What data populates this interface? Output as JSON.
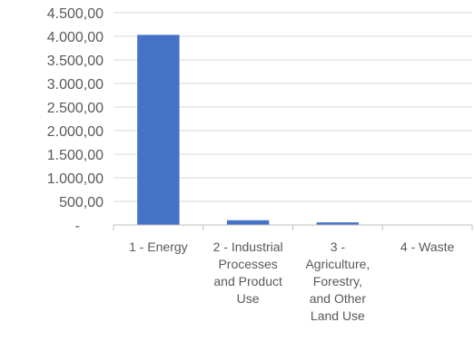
{
  "chart_data": {
    "type": "bar",
    "title": "",
    "xlabel": "",
    "ylabel": "",
    "categories": [
      "1 - Energy",
      "2 - Industrial Processes and Product Use",
      "3 - Agriculture, Forestry, and Other Land Use",
      "4 - Waste"
    ],
    "category_label_lines": [
      [
        "1 - Energy"
      ],
      [
        "2 - Industrial",
        "Processes",
        "and Product",
        "Use"
      ],
      [
        "3 -",
        "Agriculture,",
        "Forestry,",
        "and Other",
        "Land Use"
      ],
      [
        "4 - Waste"
      ]
    ],
    "values": [
      4030,
      100,
      55,
      0
    ],
    "ylim": [
      0,
      4500
    ],
    "yticks": [
      0,
      500,
      1000,
      1500,
      2000,
      2500,
      3000,
      3500,
      4000,
      4500
    ],
    "ytick_labels": [
      "-",
      "500,00",
      "1.000,00",
      "1.500,00",
      "2.000,00",
      "2.500,00",
      "3.000,00",
      "3.500,00",
      "4.000,00",
      "4.500,00"
    ],
    "grid": true,
    "legend": "none",
    "colors": {
      "bar": "#4472C4",
      "grid": "#D9D9D9",
      "axis": "#BFBFBF",
      "text": "#595959"
    }
  }
}
